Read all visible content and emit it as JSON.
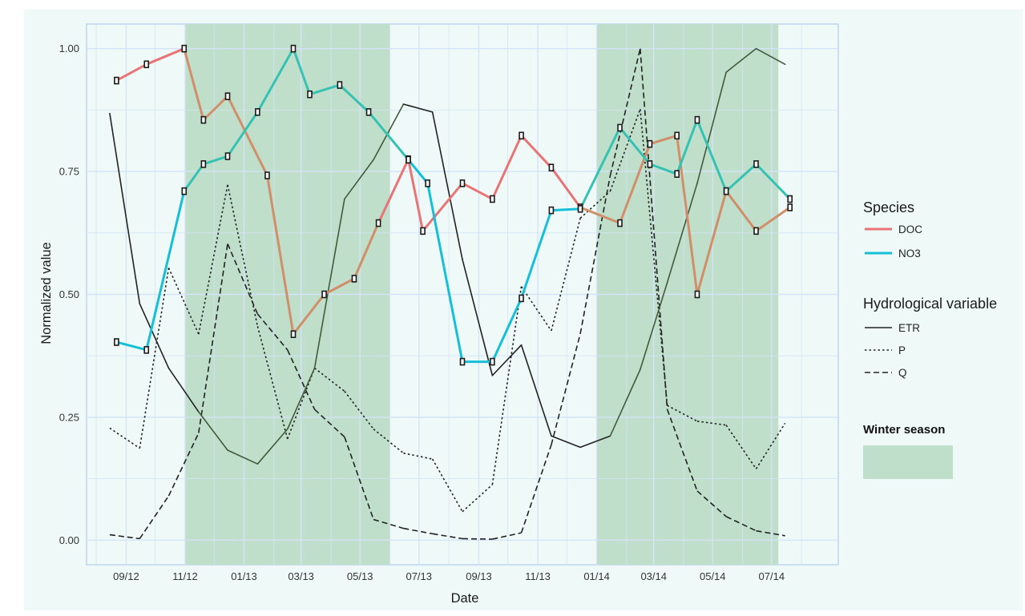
{
  "colors": {
    "background": "#effaf8",
    "grid": "#d4e3f7",
    "border": "#bdd3f0",
    "winter_fill": "#bfdfca",
    "doc": "#e87476",
    "doc_in_winter": "#d18e6a",
    "no3": "#14bfd7",
    "no3_in_winter": "#35c2b3",
    "etr": "#222222",
    "etr_in_winter": "#425a3a",
    "p": "#222222",
    "q": "#222222",
    "marker": "#1a1a1a",
    "text": "#333333"
  },
  "legend": {
    "species_title": "Species",
    "species": [
      {
        "label": "DOC",
        "color": "#e87476"
      },
      {
        "label": "NO3",
        "color": "#14bfd7"
      }
    ],
    "hydro_title": "Hydrological variable",
    "hydro": [
      {
        "label": "ETR",
        "dash": "solid"
      },
      {
        "label": "P",
        "dash": "dotted"
      },
      {
        "label": "Q",
        "dash": "dashed"
      }
    ],
    "winter_title": "Winter season"
  },
  "chart_data": {
    "type": "line",
    "xlabel": "Date",
    "ylabel": "Normalized value",
    "ylim": [
      -0.05,
      1.05
    ],
    "yticks": [
      0.0,
      0.25,
      0.5,
      0.75,
      1.0
    ],
    "ytick_labels": [
      "0.00",
      "0.25",
      "0.50",
      "0.75",
      "1.00"
    ],
    "xlim": [
      "2012-07-22",
      "2014-09-08"
    ],
    "xticks": [
      "2012-09-01",
      "2012-11-01",
      "2013-01-01",
      "2013-03-01",
      "2013-05-01",
      "2013-07-01",
      "2013-09-01",
      "2013-11-01",
      "2014-01-01",
      "2014-03-01",
      "2014-05-01",
      "2014-07-01"
    ],
    "xtick_labels": [
      "09/12",
      "11/12",
      "01/13",
      "03/13",
      "05/13",
      "07/13",
      "09/13",
      "11/13",
      "01/14",
      "03/14",
      "05/14",
      "07/14"
    ],
    "grid": true,
    "winter_periods": [
      {
        "start": "2012-11-01",
        "end": "2013-06-01"
      },
      {
        "start": "2014-01-01",
        "end": "2014-07-08"
      }
    ],
    "series": [
      {
        "name": "DOC",
        "group": "Species",
        "markers": true,
        "x": [
          "2012-08-22",
          "2012-09-22",
          "2012-10-31",
          "2012-11-20",
          "2012-12-15",
          "2013-01-25",
          "2013-02-21",
          "2013-03-25",
          "2013-04-25",
          "2013-05-20",
          "2013-06-20",
          "2013-07-05",
          "2013-08-15",
          "2013-09-15",
          "2013-10-15",
          "2013-11-15",
          "2013-12-15",
          "2014-01-25",
          "2014-02-25",
          "2014-03-25",
          "2014-04-15",
          "2014-05-15",
          "2014-06-15",
          "2014-07-20"
        ],
        "y": [
          0.935,
          0.968,
          1.0,
          0.855,
          0.903,
          0.742,
          0.419,
          0.5,
          0.532,
          0.645,
          0.775,
          0.629,
          0.726,
          0.694,
          0.823,
          0.758,
          0.677,
          0.645,
          0.806,
          0.823,
          0.5,
          0.71,
          0.629,
          0.677
        ]
      },
      {
        "name": "NO3",
        "group": "Species",
        "markers": true,
        "x": [
          "2012-08-22",
          "2012-09-22",
          "2012-10-31",
          "2012-11-20",
          "2012-12-15",
          "2013-01-15",
          "2013-02-21",
          "2013-03-10",
          "2013-04-10",
          "2013-05-10",
          "2013-06-20",
          "2013-07-10",
          "2013-08-15",
          "2013-09-15",
          "2013-10-15",
          "2013-11-15",
          "2013-12-15",
          "2014-01-25",
          "2014-02-25",
          "2014-03-25",
          "2014-04-15",
          "2014-05-15",
          "2014-06-15",
          "2014-07-20"
        ],
        "y": [
          0.403,
          0.387,
          0.71,
          0.765,
          0.781,
          0.871,
          1.0,
          0.907,
          0.926,
          0.871,
          0.774,
          0.726,
          0.363,
          0.363,
          0.492,
          0.671,
          0.674,
          0.839,
          0.765,
          0.745,
          0.855,
          0.71,
          0.765,
          0.694
        ]
      },
      {
        "name": "ETR",
        "group": "Hydrological variable",
        "dash": "solid",
        "x": [
          "2012-08-15",
          "2012-09-15",
          "2012-10-15",
          "2012-11-15",
          "2012-12-15",
          "2013-01-15",
          "2013-02-15",
          "2013-03-15",
          "2013-04-15",
          "2013-05-15",
          "2013-06-15",
          "2013-07-15",
          "2013-08-15",
          "2013-09-15",
          "2013-10-15",
          "2013-11-15",
          "2013-12-15",
          "2014-01-15",
          "2014-02-15",
          "2014-03-15",
          "2014-04-15",
          "2014-05-15",
          "2014-06-15",
          "2014-07-15"
        ],
        "y": [
          0.868,
          0.481,
          0.35,
          0.261,
          0.183,
          0.155,
          0.226,
          0.35,
          0.694,
          0.774,
          0.887,
          0.871,
          0.571,
          0.335,
          0.397,
          0.212,
          0.189,
          0.212,
          0.347,
          0.524,
          0.726,
          0.952,
          1.0,
          0.968
        ]
      },
      {
        "name": "P",
        "group": "Hydrological variable",
        "dash": "dotted",
        "x": [
          "2012-08-15",
          "2012-09-15",
          "2012-10-15",
          "2012-11-15",
          "2012-12-15",
          "2013-01-15",
          "2013-02-15",
          "2013-03-15",
          "2013-04-15",
          "2013-05-15",
          "2013-06-15",
          "2013-07-15",
          "2013-08-15",
          "2013-09-15",
          "2013-10-15",
          "2013-11-15",
          "2013-12-15",
          "2014-01-15",
          "2014-02-15",
          "2014-03-15",
          "2014-04-15",
          "2014-05-15",
          "2014-06-15",
          "2014-07-15"
        ],
        "y": [
          0.228,
          0.187,
          0.554,
          0.419,
          0.723,
          0.435,
          0.206,
          0.35,
          0.303,
          0.226,
          0.177,
          0.165,
          0.058,
          0.113,
          0.516,
          0.426,
          0.655,
          0.71,
          0.877,
          0.274,
          0.242,
          0.234,
          0.145,
          0.238
        ]
      },
      {
        "name": "Q",
        "group": "Hydrological variable",
        "dash": "dashed",
        "x": [
          "2012-08-15",
          "2012-09-15",
          "2012-10-15",
          "2012-11-15",
          "2012-12-15",
          "2013-01-15",
          "2013-02-15",
          "2013-03-15",
          "2013-04-15",
          "2013-05-15",
          "2013-06-15",
          "2013-07-15",
          "2013-08-15",
          "2013-09-15",
          "2013-10-15",
          "2013-11-15",
          "2013-12-15",
          "2014-01-15",
          "2014-02-15",
          "2014-03-15",
          "2014-04-15",
          "2014-05-15",
          "2014-06-15",
          "2014-07-15"
        ],
        "y": [
          0.011,
          0.003,
          0.09,
          0.218,
          0.603,
          0.46,
          0.387,
          0.266,
          0.21,
          0.042,
          0.024,
          0.013,
          0.003,
          0.002,
          0.015,
          0.194,
          0.42,
          0.742,
          1.0,
          0.266,
          0.1,
          0.048,
          0.019,
          0.009
        ]
      }
    ]
  }
}
